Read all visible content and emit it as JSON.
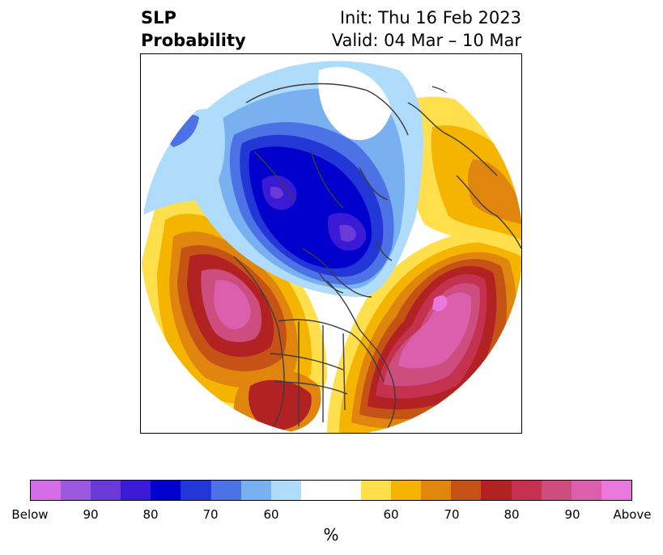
{
  "title": {
    "left_line1": "SLP",
    "left_line2": "Probability",
    "right_line1": "Init: Thu 16 Feb 2023",
    "right_line2": "Valid: 04 Mar – 10 Mar"
  },
  "map": {
    "projection": "north-polar-stereographic",
    "boundaries": "coastlines, country and state/province borders",
    "anomalies": [
      {
        "region": "Northern Canada / Arctic",
        "sign": "below",
        "peak": "Below 90%"
      },
      {
        "region": "Canadian Arctic Archipelago / Alaska",
        "sign": "below",
        "peak": "80–90%"
      },
      {
        "region": "Gulf of Alaska / NE Pacific",
        "sign": "above",
        "peak": "80–90%"
      },
      {
        "region": "North Atlantic",
        "sign": "above",
        "peak": "90% to Above"
      },
      {
        "region": "Southern United States",
        "sign": "above",
        "peak": "70–80%"
      },
      {
        "region": "Northern Europe / Scandinavia",
        "sign": "above",
        "peak": "60–70%"
      }
    ]
  },
  "colorbar": {
    "colors": [
      "#d46ee6",
      "#9c59e0",
      "#6a3ad8",
      "#3a1ad4",
      "#0000cc",
      "#2336d6",
      "#4c72e6",
      "#78b0f0",
      "#aedcfa",
      "#ffffff",
      "#ffffff",
      "#ffe04c",
      "#f4b400",
      "#e0860e",
      "#c65316",
      "#b22222",
      "#c43250",
      "#cc4d7e",
      "#dc5fae",
      "#e878dc"
    ],
    "tick_labels": [
      "Below",
      "90",
      "80",
      "70",
      "60",
      "60",
      "70",
      "80",
      "90",
      "Above"
    ],
    "unit": "%"
  }
}
